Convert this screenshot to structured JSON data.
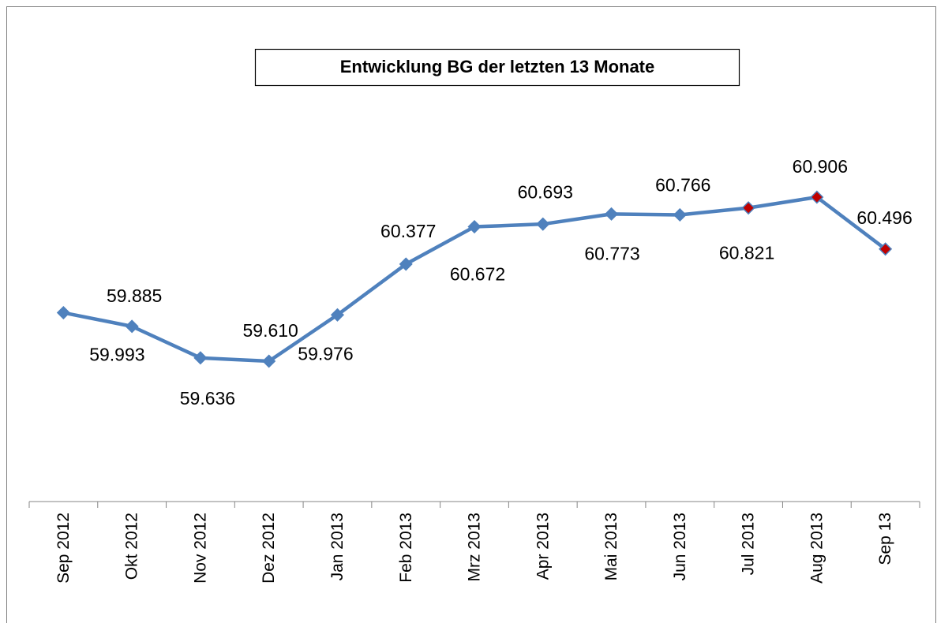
{
  "chart_data": {
    "type": "line",
    "title": "Entwicklung BG der letzten 13 Monate",
    "categories": [
      "Sep 2012",
      "Okt 2012",
      "Nov 2012",
      "Dez 2012",
      "Jan 2013",
      "Feb 2013",
      "Mrz 2013",
      "Apr 2013",
      "Mai 2013",
      "Jun 2013",
      "Jul 2013",
      "Aug 2013",
      "Sep 13"
    ],
    "values": [
      59.993,
      59.885,
      59.636,
      59.61,
      59.976,
      60.377,
      60.672,
      60.693,
      60.773,
      60.766,
      60.821,
      60.906,
      60.496
    ],
    "value_labels": [
      "59.993",
      "59.885",
      "59.636",
      "59.610",
      "59.976",
      "60.377",
      "60.672",
      "60.693",
      "60.773",
      "60.766",
      "60.821",
      "60.906",
      "60.496"
    ],
    "color": "#4f81bd",
    "point_colors": [
      "#4f81bd",
      "#4f81bd",
      "#4f81bd",
      "#4f81bd",
      "#4f81bd",
      "#4f81bd",
      "#4f81bd",
      "#4f81bd",
      "#4f81bd",
      "#4f81bd",
      "#c00000",
      "#c00000",
      "#c00000"
    ]
  }
}
